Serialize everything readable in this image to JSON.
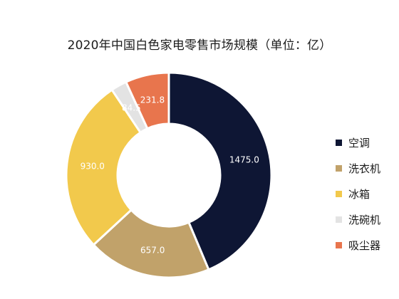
{
  "title": "2020年中国白色家电零售市场规模（单位：亿）",
  "chart_data": {
    "type": "pie",
    "donut": true,
    "title": "2020年中国白色家电零售市场规模（单位：亿）",
    "unit": "亿",
    "categories": [
      "空调",
      "洗衣机",
      "冰箱",
      "洗碗机",
      "吸尘器"
    ],
    "values": [
      1475.0,
      657.0,
      930.0,
      84.5,
      231.8
    ],
    "value_labels": [
      "1475.0",
      "657.0",
      "930.0",
      "84.5",
      "231.8"
    ],
    "colors": [
      "#0e1634",
      "#c1a26a",
      "#f2c94c",
      "#e3e3e3",
      "#e8754d"
    ],
    "legend_position": "right",
    "start_angle": "12 o'clock",
    "direction": "clockwise"
  },
  "legend": {
    "items": [
      {
        "label": "空调",
        "color": "#0e1634"
      },
      {
        "label": "洗衣机",
        "color": "#c1a26a"
      },
      {
        "label": "冰箱",
        "color": "#f2c94c"
      },
      {
        "label": "洗碗机",
        "color": "#e3e3e3"
      },
      {
        "label": "吸尘器",
        "color": "#e8754d"
      }
    ]
  }
}
